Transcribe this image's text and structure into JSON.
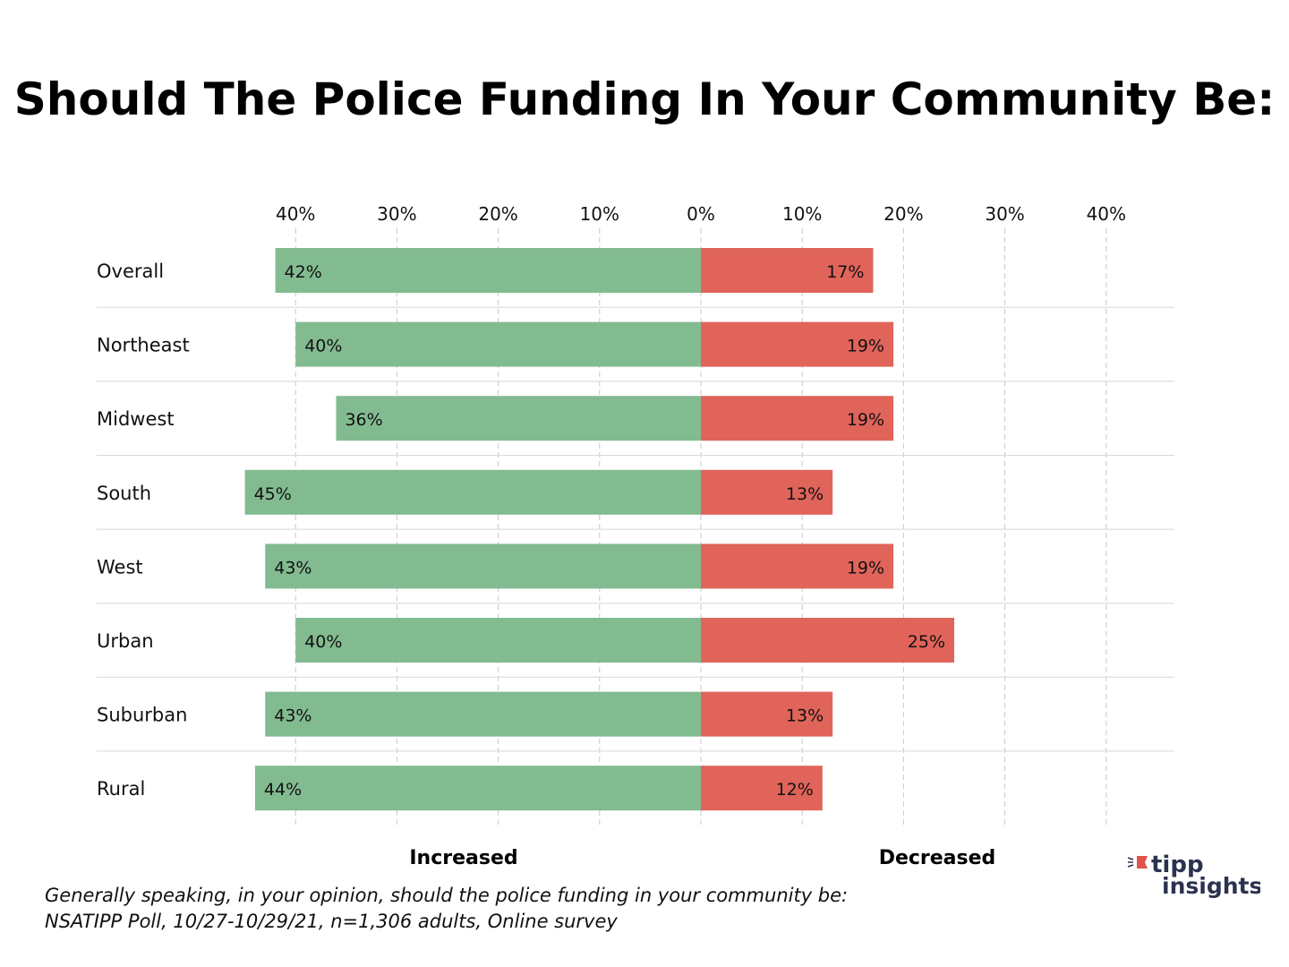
{
  "chart_data": {
    "type": "bar",
    "orientation": "horizontal-diverging",
    "title": "Should The Police Funding In Your Community Be:",
    "categories": [
      "Overall",
      "Northeast",
      "Midwest",
      "South",
      "West",
      "Urban",
      "Suburban",
      "Rural"
    ],
    "series": [
      {
        "name": "Increased",
        "color": "#83bb91",
        "values": [
          42,
          40,
          36,
          45,
          43,
          40,
          43,
          44
        ],
        "labels": [
          "42%",
          "40%",
          "36%",
          "45%",
          "43%",
          "40%",
          "43%",
          "44%"
        ]
      },
      {
        "name": "Decreased",
        "color": "#e0645a",
        "values": [
          17,
          19,
          19,
          13,
          19,
          25,
          13,
          12
        ],
        "labels": [
          "17%",
          "19%",
          "19%",
          "13%",
          "19%",
          "25%",
          "13%",
          "12%"
        ]
      }
    ],
    "xticks": [
      -40,
      -30,
      -20,
      -10,
      0,
      10,
      20,
      30,
      40
    ],
    "xtick_labels": [
      "40%",
      "30%",
      "20%",
      "10%",
      "0%",
      "10%",
      "20%",
      "30%",
      "40%"
    ],
    "xlim": [
      -40,
      40
    ],
    "grid": true,
    "footnote": [
      "Generally speaking, in your opinion, should the police funding in your community be:",
      "NSATIPP Poll, 10/27-10/29/21, n=1,306 adults, Online survey"
    ]
  },
  "logo": {
    "line1": "tipp",
    "line2": "insights"
  }
}
